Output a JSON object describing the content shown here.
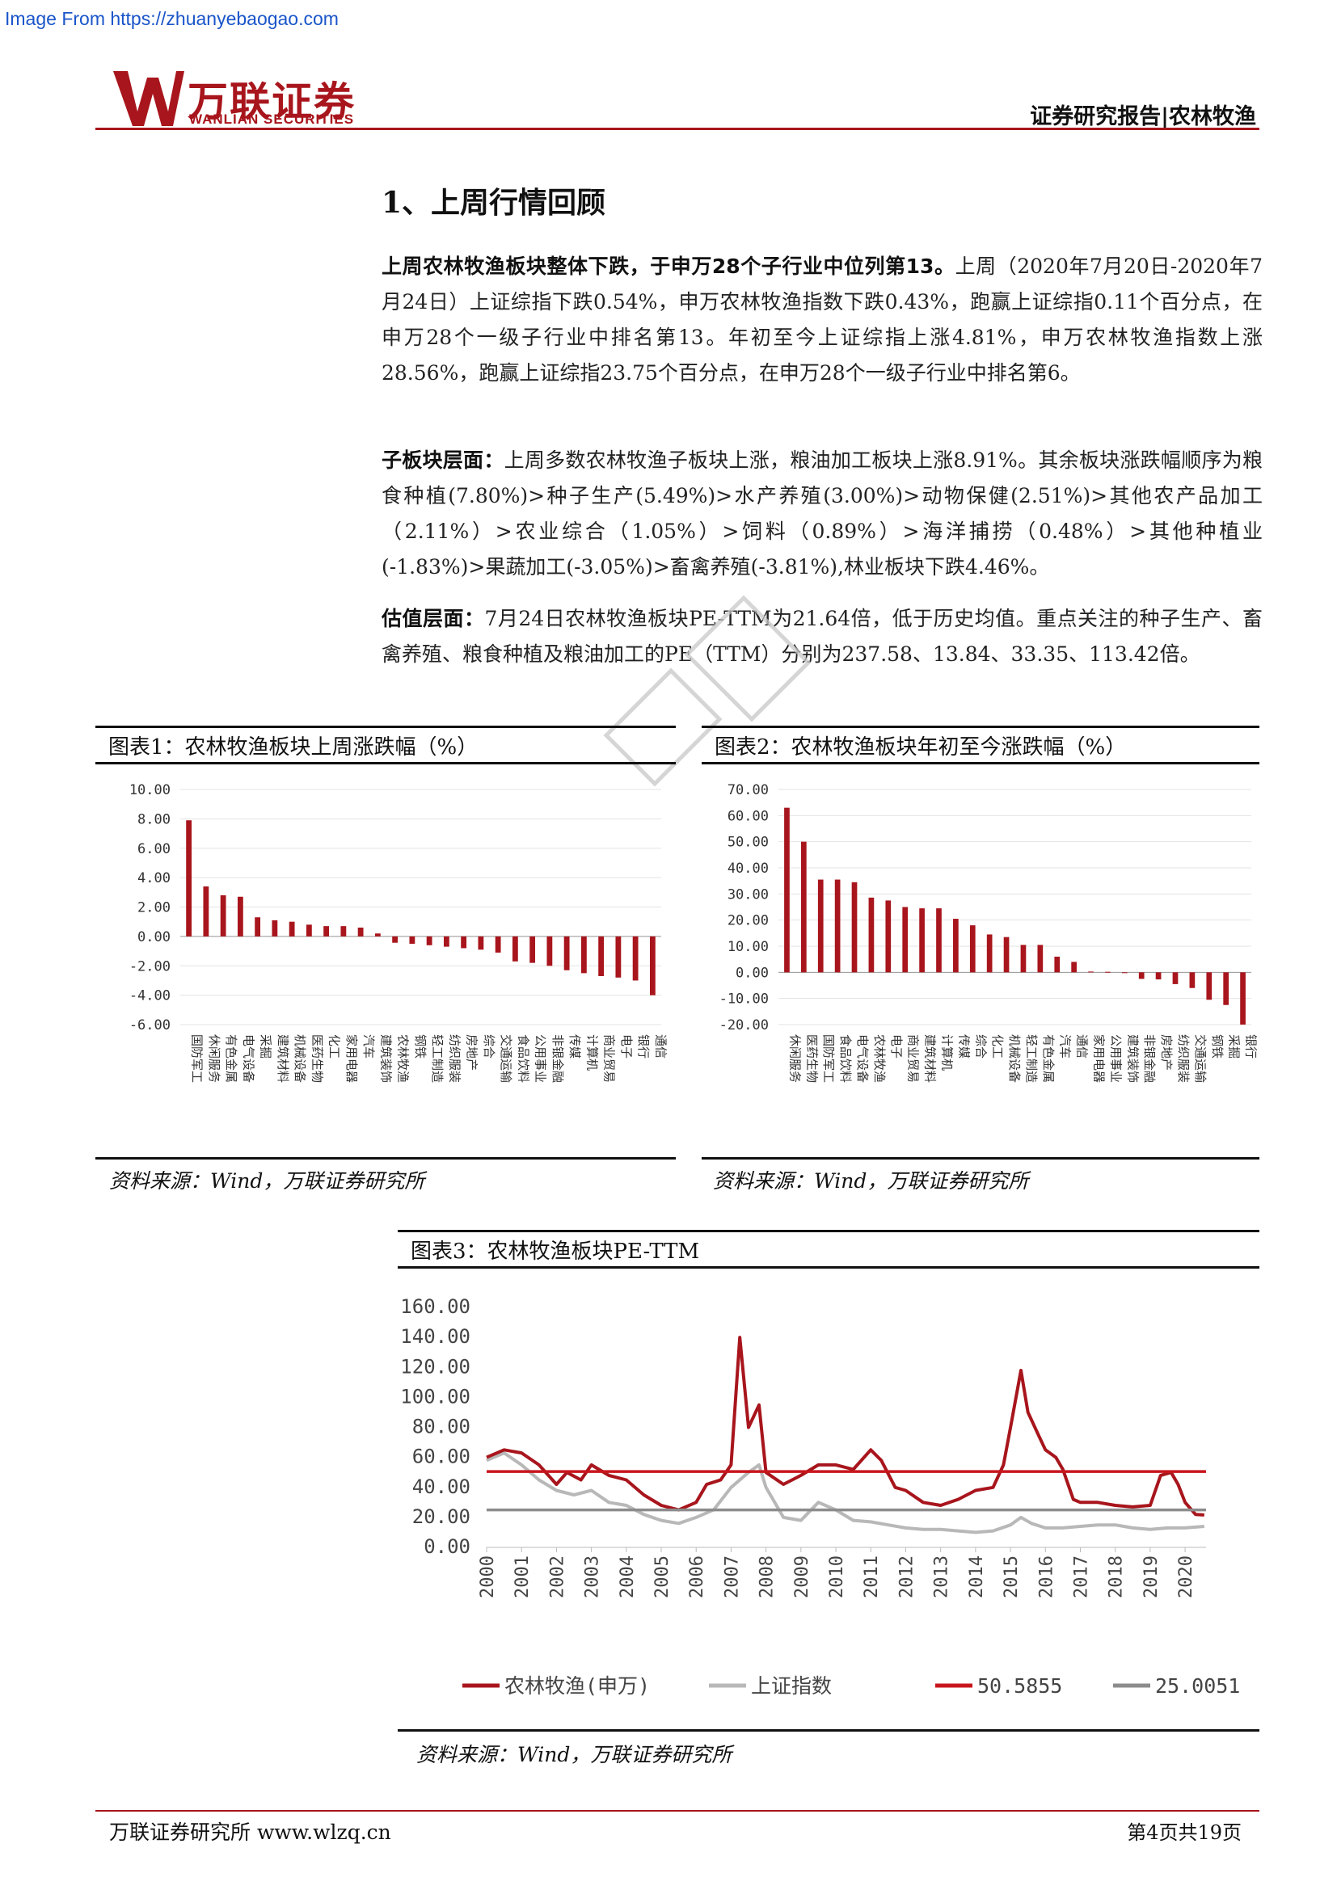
{
  "banner": {
    "text": "Image From https://zhuanyebaogao.com"
  },
  "logo": {
    "cn": "万联证券",
    "en": "WANLIAN SECURITIES"
  },
  "header": {
    "right": "证券研究报告|农林牧渔"
  },
  "section": {
    "title": "1、上周行情回顾"
  },
  "paragraphs": {
    "p1_bold": "上周农林牧渔板块整体下跌，于申万28个子行业中位列第13。",
    "p1_text": "上周（2020年7月20日-2020年7月24日）上证综指下跌0.54%，申万农林牧渔指数下跌0.43%，跑赢上证综指0.11个百分点，在申万28个一级子行业中排名第13。年初至今上证综指上涨4.81%，申万农林牧渔指数上涨28.56%，跑赢上证综指23.75个百分点，在申万28个一级子行业中排名第6。",
    "p2_bold": "子板块层面：",
    "p2_text": "上周多数农林牧渔子板块上涨，粮油加工板块上涨8.91%。其余板块涨跌幅顺序为粮食种植(7.80%)>种子生产(5.49%)>水产养殖(3.00%)>动物保健(2.51%)>其他农产品加工（2.11%）>农业综合（1.05%）>饲料（0.89%）>海洋捕捞（0.48%）>其他种植业(-1.83%)>果蔬加工(-3.05%)>畜禽养殖(-3.81%),林业板块下跌4.46%。",
    "p3_bold": "估值层面：",
    "p3_text": "7月24日农林牧渔板块PE-TTM为21.64倍，低于历史均值。重点关注的种子生产、畜禽养殖、粮食种植及粮油加工的PE（TTM）分别为237.58、13.84、33.35、113.42倍。"
  },
  "figures": {
    "fig1_title": "图表1：农林牧渔板块上周涨跌幅（%）",
    "fig2_title": "图表2：农林牧渔板块年初至今涨跌幅（%）",
    "fig3_title": "图表3：农林牧渔板块PE-TTM",
    "source": "资料来源：Wind，万联证券研究所"
  },
  "footer": {
    "left": "万联证券研究所 www.wlzq.cn",
    "right": "第4页共19页"
  },
  "colors": {
    "brand": "#a8151c",
    "bar": "#a8151c",
    "index": "#b8b8b8",
    "mean": "#c8161d",
    "mean2": "#8c8c8c"
  },
  "chart_data": [
    {
      "type": "bar",
      "title": "图表1：农林牧渔板块上周涨跌幅（%）",
      "categories": [
        "国防军工",
        "休闲服务",
        "有色金属",
        "电气设备",
        "采掘",
        "建筑材料",
        "机械设备",
        "医药生物",
        "化工",
        "家用电器",
        "汽车",
        "建筑装饰",
        "农林牧渔",
        "钢铁",
        "轻工制造",
        "纺织服装",
        "房地产",
        "综合",
        "交通运输",
        "食品饮料",
        "公用事业",
        "非银金融",
        "传媒",
        "计算机",
        "商业贸易",
        "电子",
        "银行",
        "通信"
      ],
      "values": [
        7.9,
        3.4,
        2.8,
        2.7,
        1.3,
        1.1,
        1.0,
        0.8,
        0.7,
        0.7,
        0.6,
        0.2,
        -0.43,
        -0.5,
        -0.6,
        -0.7,
        -0.8,
        -0.9,
        -1.1,
        -1.7,
        -1.8,
        -2.0,
        -2.3,
        -2.5,
        -2.7,
        -2.8,
        -3.0,
        -4.0
      ],
      "ylim": [
        -6,
        10
      ],
      "yticks": [
        "10.00",
        "8.00",
        "6.00",
        "4.00",
        "2.00",
        "0.00",
        "-2.00",
        "-4.00",
        "-6.00"
      ]
    },
    {
      "type": "bar",
      "title": "图表2：农林牧渔板块年初至今涨跌幅（%）",
      "categories": [
        "休闲服务",
        "医药生物",
        "国防军工",
        "食品饮料",
        "电气设备",
        "农林牧渔",
        "电子",
        "商业贸易",
        "建筑材料",
        "计算机",
        "传媒",
        "综合",
        "化工",
        "机械设备",
        "轻工制造",
        "有色金属",
        "汽车",
        "通信",
        "家用电器",
        "公用事业",
        "建筑装饰",
        "非银金融",
        "房地产",
        "纺织服装",
        "交通运输",
        "钢铁",
        "采掘",
        "银行"
      ],
      "values": [
        63,
        50,
        35.5,
        35.5,
        34.5,
        28.6,
        27.5,
        25,
        24.5,
        24.5,
        20.5,
        18,
        14.5,
        13.5,
        10.5,
        10.5,
        6,
        4,
        0.3,
        0.2,
        0,
        -2.5,
        -2.7,
        -4.5,
        -6,
        -10.5,
        -12.5,
        -20
      ],
      "ylim": [
        -20,
        70
      ],
      "yticks": [
        "70.00",
        "60.00",
        "50.00",
        "40.00",
        "30.00",
        "20.00",
        "10.00",
        "0.00",
        "-10.00",
        "-20.00"
      ]
    },
    {
      "type": "line",
      "title": "图表3：农林牧渔板块PE-TTM",
      "x": [
        "2000",
        "2001",
        "2002",
        "2003",
        "2004",
        "2005",
        "2006",
        "2007",
        "2008",
        "2009",
        "2010",
        "2011",
        "2012",
        "2013",
        "2014",
        "2015",
        "2016",
        "2017",
        "2018",
        "2019",
        "2020"
      ],
      "ylim": [
        0,
        160
      ],
      "yticks": [
        "160.00",
        "140.00",
        "120.00",
        "100.00",
        "80.00",
        "60.00",
        "40.00",
        "20.00",
        "0.00"
      ],
      "series": [
        {
          "name": "农林牧渔(申万)",
          "points": [
            [
              2000,
              60
            ],
            [
              2000.5,
              65
            ],
            [
              2001,
              63
            ],
            [
              2001.5,
              55
            ],
            [
              2002,
              42
            ],
            [
              2002.3,
              50
            ],
            [
              2002.7,
              45
            ],
            [
              2003,
              55
            ],
            [
              2003.5,
              48
            ],
            [
              2004,
              45
            ],
            [
              2004.5,
              35
            ],
            [
              2005,
              28
            ],
            [
              2005.5,
              25
            ],
            [
              2006,
              30
            ],
            [
              2006.3,
              42
            ],
            [
              2006.7,
              45
            ],
            [
              2007,
              55
            ],
            [
              2007.25,
              140
            ],
            [
              2007.5,
              80
            ],
            [
              2007.8,
              95
            ],
            [
              2008,
              50
            ],
            [
              2008.5,
              42
            ],
            [
              2009,
              48
            ],
            [
              2009.5,
              55
            ],
            [
              2010,
              55
            ],
            [
              2010.5,
              52
            ],
            [
              2011,
              65
            ],
            [
              2011.3,
              58
            ],
            [
              2011.7,
              40
            ],
            [
              2012,
              38
            ],
            [
              2012.5,
              30
            ],
            [
              2013,
              28
            ],
            [
              2013.5,
              32
            ],
            [
              2014,
              38
            ],
            [
              2014.5,
              40
            ],
            [
              2014.8,
              55
            ],
            [
              2015,
              80
            ],
            [
              2015.3,
              118
            ],
            [
              2015.5,
              90
            ],
            [
              2015.8,
              75
            ],
            [
              2016,
              65
            ],
            [
              2016.3,
              60
            ],
            [
              2016.5,
              52
            ],
            [
              2016.8,
              32
            ],
            [
              2017,
              30
            ],
            [
              2017.5,
              30
            ],
            [
              2018,
              28
            ],
            [
              2018.5,
              27
            ],
            [
              2019,
              28
            ],
            [
              2019.3,
              48
            ],
            [
              2019.6,
              50
            ],
            [
              2019.8,
              42
            ],
            [
              2020,
              30
            ],
            [
              2020.3,
              22
            ],
            [
              2020.55,
              21.6
            ]
          ]
        },
        {
          "name": "上证指数",
          "points": [
            [
              2000,
              58
            ],
            [
              2000.5,
              63
            ],
            [
              2001,
              55
            ],
            [
              2001.5,
              45
            ],
            [
              2002,
              38
            ],
            [
              2002.5,
              35
            ],
            [
              2003,
              38
            ],
            [
              2003.5,
              30
            ],
            [
              2004,
              28
            ],
            [
              2004.5,
              22
            ],
            [
              2005,
              18
            ],
            [
              2005.5,
              16
            ],
            [
              2006,
              20
            ],
            [
              2006.5,
              25
            ],
            [
              2007,
              40
            ],
            [
              2007.5,
              50
            ],
            [
              2007.8,
              55
            ],
            [
              2008,
              40
            ],
            [
              2008.5,
              20
            ],
            [
              2009,
              18
            ],
            [
              2009.5,
              30
            ],
            [
              2010,
              25
            ],
            [
              2010.5,
              18
            ],
            [
              2011,
              17
            ],
            [
              2011.5,
              15
            ],
            [
              2012,
              13
            ],
            [
              2012.5,
              12
            ],
            [
              2013,
              12
            ],
            [
              2013.5,
              11
            ],
            [
              2014,
              10
            ],
            [
              2014.5,
              11
            ],
            [
              2015,
              15
            ],
            [
              2015.3,
              20
            ],
            [
              2015.6,
              16
            ],
            [
              2016,
              13
            ],
            [
              2016.5,
              13
            ],
            [
              2017,
              14
            ],
            [
              2017.5,
              15
            ],
            [
              2018,
              15
            ],
            [
              2018.5,
              13
            ],
            [
              2019,
              12
            ],
            [
              2019.5,
              13
            ],
            [
              2020,
              13
            ],
            [
              2020.55,
              14
            ]
          ]
        },
        {
          "name": "50.5855",
          "value": 50.5855
        },
        {
          "name": "25.0051",
          "value": 25.0051
        }
      ]
    }
  ]
}
